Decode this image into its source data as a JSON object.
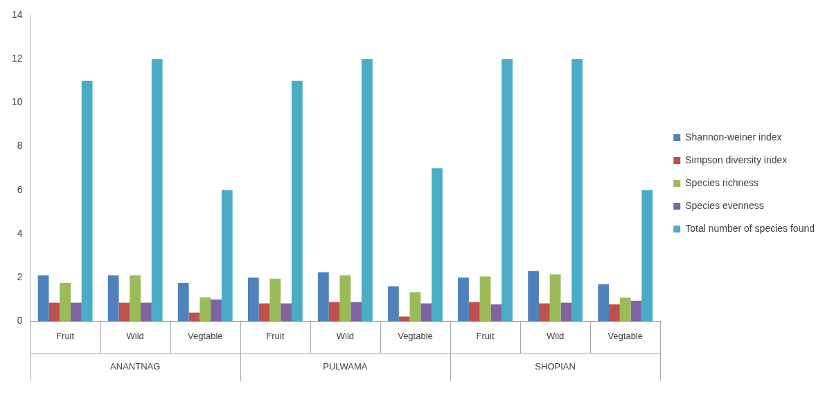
{
  "chart_data": {
    "type": "bar",
    "categories": [
      "Fruit",
      "Wild",
      "Vegtable",
      "Fruit",
      "Wild",
      "Vegtable",
      "Fruit",
      "Wild",
      "Vegtable"
    ],
    "annotations": [
      "ANANTNAG",
      "PULWAMA",
      "SHOPIAN"
    ],
    "series": [
      {
        "name": "Shannon-weiner index",
        "color": "#4f81bd",
        "values": [
          2.1,
          2.1,
          1.75,
          2.0,
          2.24,
          1.6,
          2.0,
          2.3,
          1.7
        ]
      },
      {
        "name": "Simpson diversity index",
        "color": "#c0504d",
        "values": [
          0.85,
          0.85,
          0.4,
          0.82,
          0.88,
          0.22,
          0.88,
          0.82,
          0.78
        ]
      },
      {
        "name": "Species richness",
        "color": "#9bbb59",
        "values": [
          1.75,
          2.1,
          1.1,
          1.95,
          2.1,
          1.33,
          2.05,
          2.15,
          1.08
        ]
      },
      {
        "name": "Species evenness",
        "color": "#8064a2",
        "values": [
          0.85,
          0.85,
          1.0,
          0.82,
          0.88,
          0.82,
          0.78,
          0.85,
          0.94
        ]
      },
      {
        "name": "Total number of species found",
        "color": "#4bacc6",
        "values": [
          11,
          12,
          6,
          11,
          12,
          7,
          12,
          12,
          6
        ]
      }
    ],
    "ylim": [
      0,
      14
    ],
    "yticks": [
      0,
      2,
      4,
      6,
      8,
      10,
      12,
      14
    ],
    "grid": false,
    "legend": "right"
  }
}
